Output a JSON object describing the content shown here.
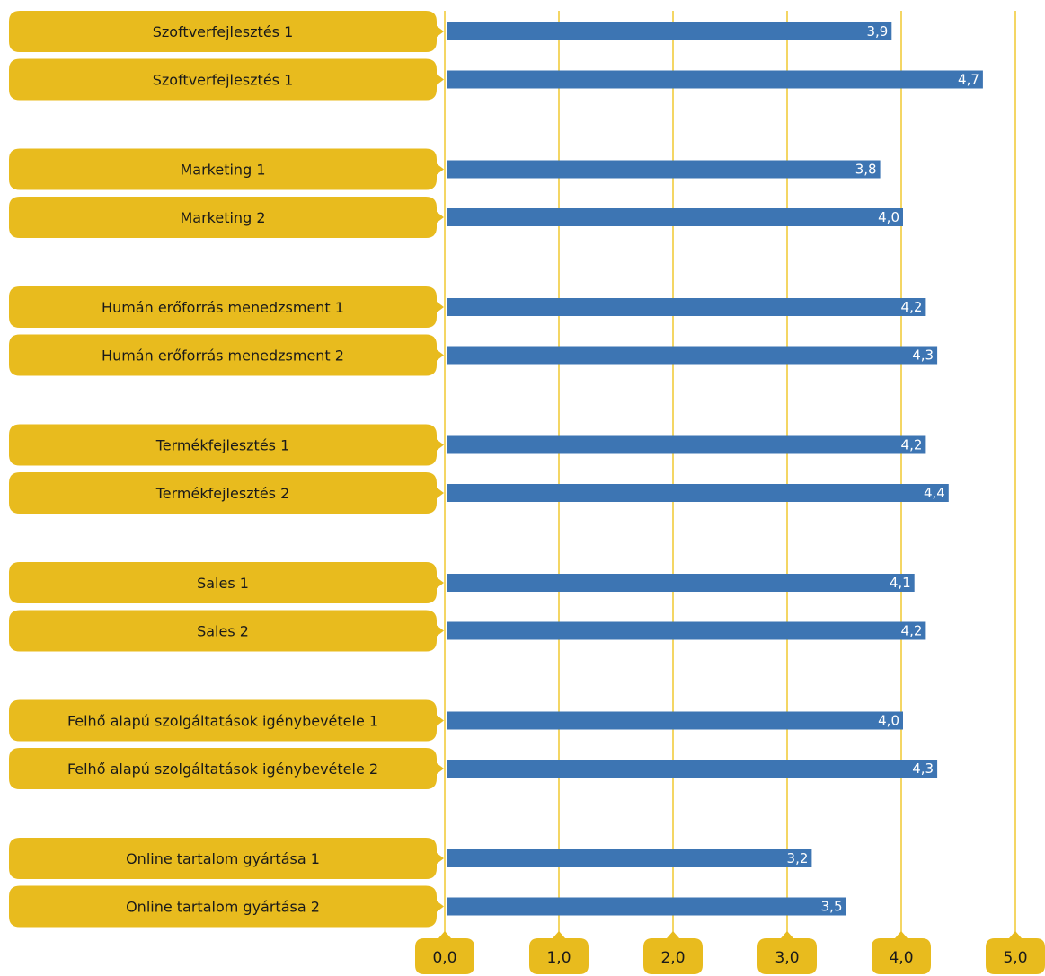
{
  "chart_data": {
    "type": "bar",
    "orientation": "horizontal",
    "categories": [
      "Szoftverfejlesztés 1",
      "Szoftverfejlesztés 1",
      "Marketing 1",
      "Marketing 2",
      "Humán erőforrás menedzsment 1",
      "Humán erőforrás menedzsment 2",
      "Termékfejlesztés 1",
      "Termékfejlesztés 2",
      "Sales 1",
      "Sales 2",
      "Felhő alapú szolgáltatások igénybevétele 1",
      "Felhő alapú szolgáltatások igénybevétele 2",
      "Online tartalom gyártása 1",
      "Online tartalom gyártása 2"
    ],
    "values": [
      3.9,
      4.7,
      3.8,
      4.0,
      4.2,
      4.3,
      4.2,
      4.4,
      4.1,
      4.2,
      4.0,
      4.3,
      3.2,
      3.5
    ],
    "value_labels": [
      "3,9",
      "4,7",
      "3,8",
      "4,0",
      "4,2",
      "4,3",
      "4,2",
      "4,4",
      "4,1",
      "4,2",
      "4,0",
      "4,3",
      "3,2",
      "3,5"
    ],
    "xlim": [
      0,
      5
    ],
    "x_ticks": [
      "0,0",
      "1,0",
      "2,0",
      "3,0",
      "4,0",
      "5,0"
    ],
    "grid": true,
    "legend": "none",
    "colors": {
      "bar": "#3d75b3",
      "label_box": "#e8bb1e",
      "grid": "#f0c830"
    }
  }
}
